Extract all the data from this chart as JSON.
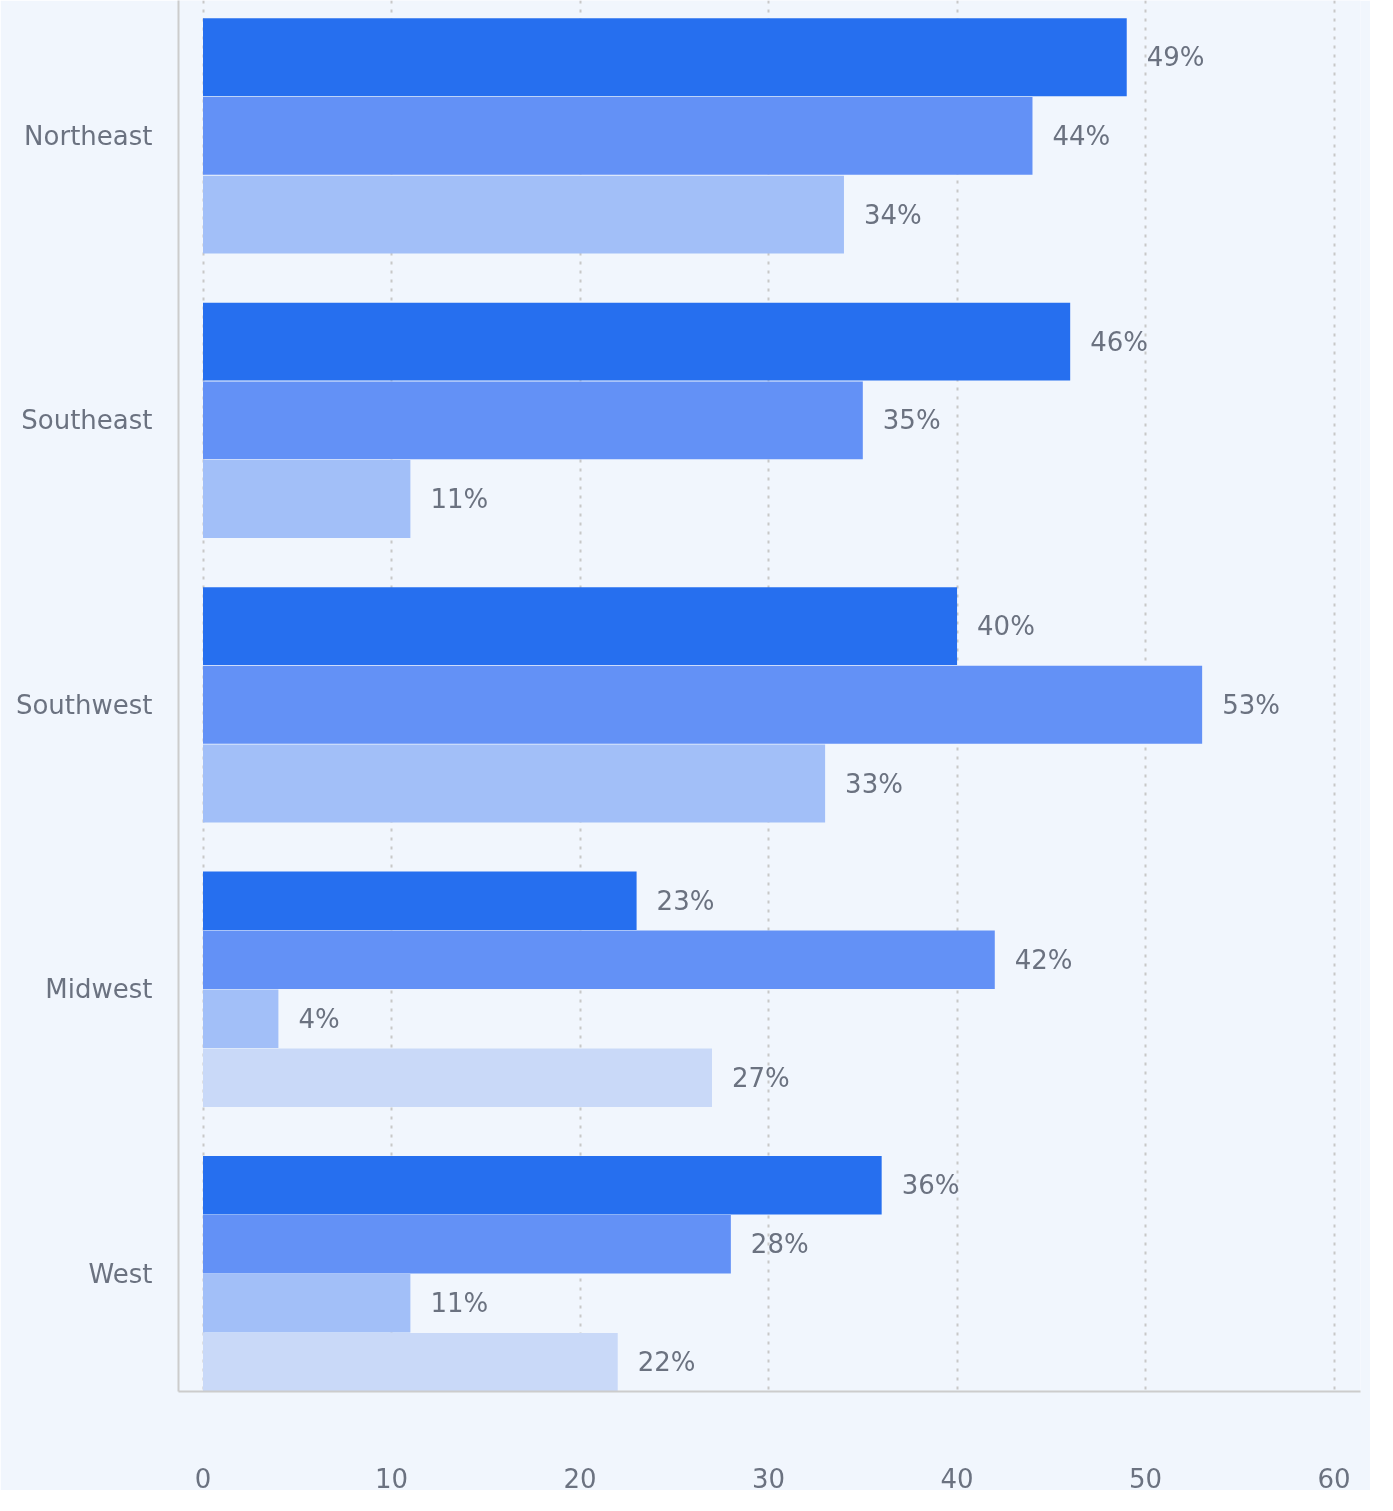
{
  "chart_data": {
    "type": "bar",
    "orientation": "horizontal",
    "categories": [
      "Northeast",
      "Southeast",
      "Southwest",
      "Midwest",
      "West"
    ],
    "series": [
      {
        "color": "#266fef",
        "values": [
          49,
          46,
          40,
          23,
          36
        ],
        "value_labels": [
          "49%",
          "46%",
          "40%",
          "23%",
          "36%"
        ]
      },
      {
        "color": "#6391f6",
        "values": [
          44,
          35,
          53,
          42,
          28
        ],
        "value_labels": [
          "44%",
          "35%",
          "53%",
          "42%",
          "28%"
        ]
      },
      {
        "color": "#a2bff8",
        "values": [
          34,
          11,
          33,
          4,
          11
        ],
        "value_labels": [
          "34%",
          "11%",
          "33%",
          "4%",
          "11%"
        ]
      },
      {
        "color": "#c9d9f8",
        "values": [
          null,
          null,
          null,
          27,
          22
        ],
        "value_labels": [
          null,
          null,
          null,
          "27%",
          "22%"
        ]
      }
    ],
    "xlim": [
      -1.3,
      61.4
    ],
    "xticks": [
      0,
      10,
      20,
      30,
      40,
      50,
      60
    ],
    "grid": "x"
  }
}
